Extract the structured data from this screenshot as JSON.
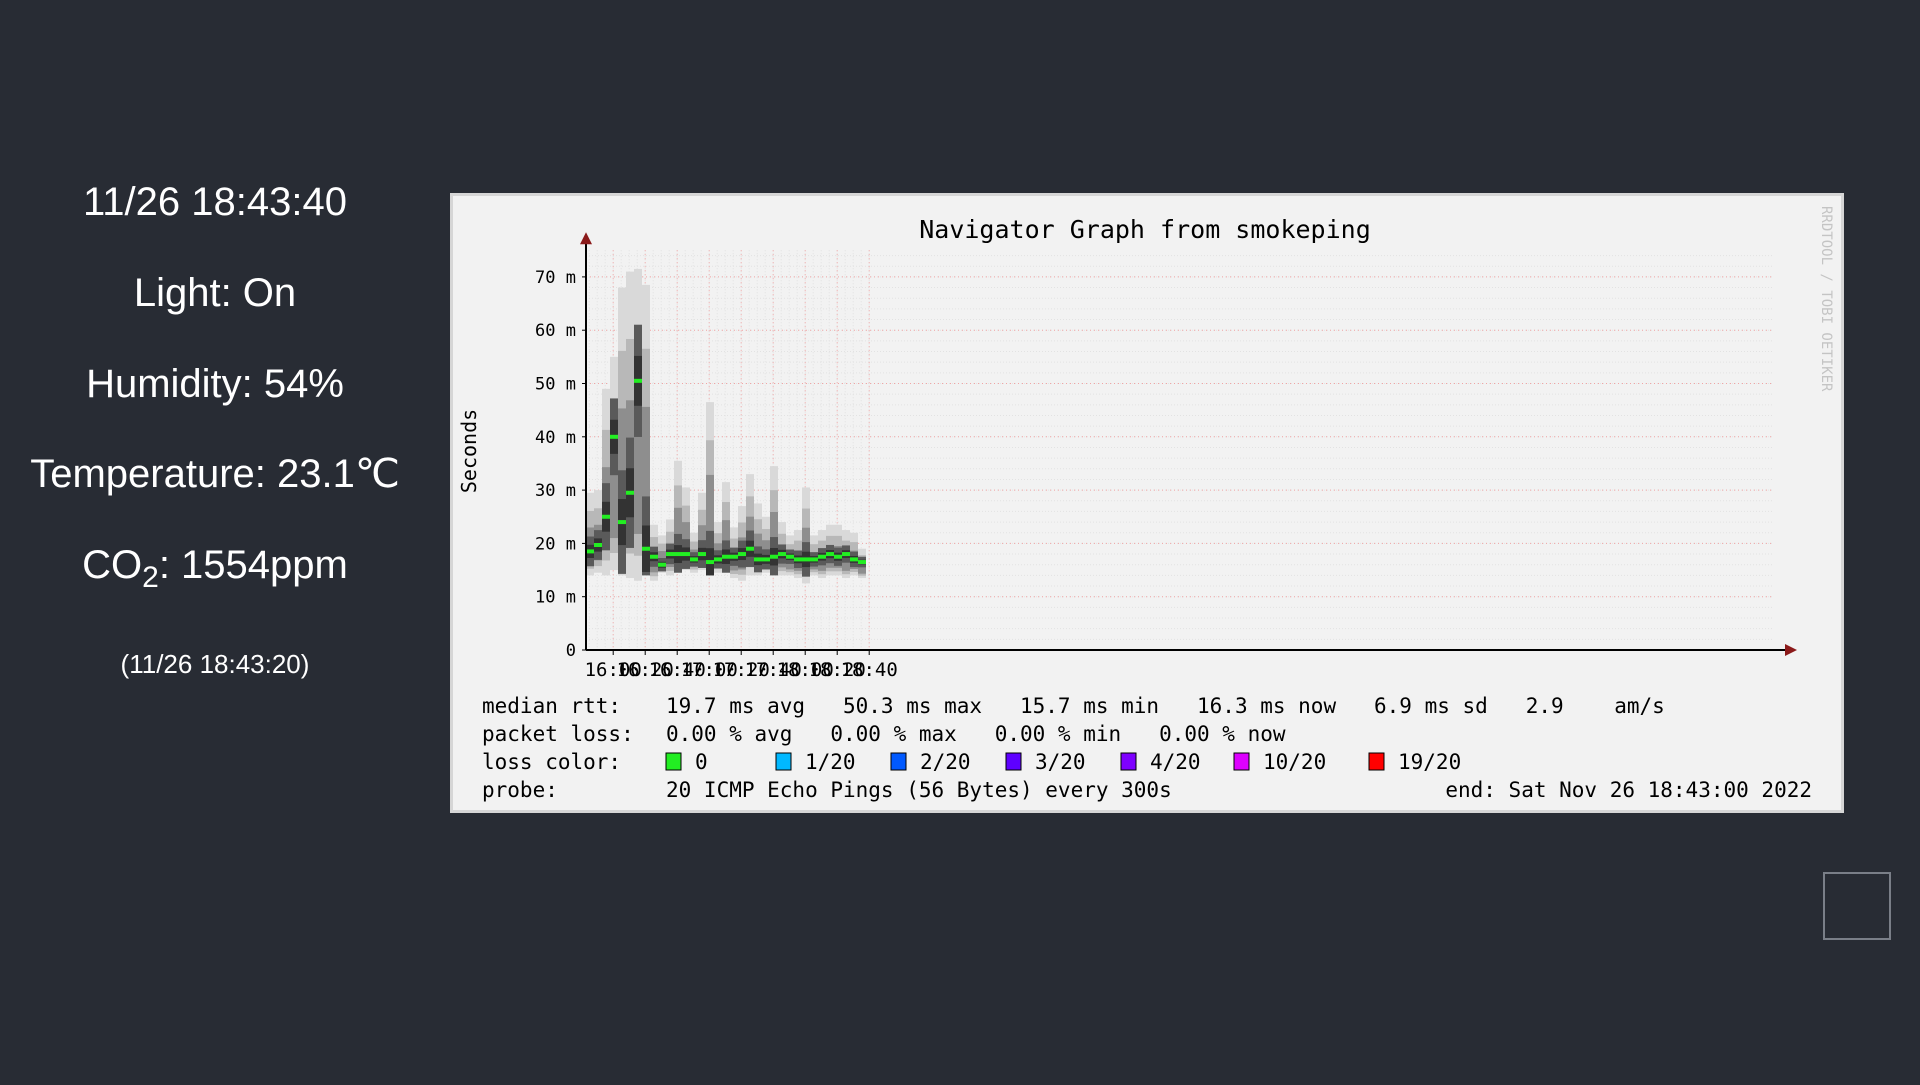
{
  "sensors": {
    "datetime": "11/26 18:43:40",
    "light": "Light: On",
    "humidity": "Humidity: 54%",
    "temperature": "Temperature: 23.1℃",
    "co2_prefix": "CO",
    "co2_sub": "2",
    "co2_value": ": 1554ppm",
    "updated": "(11/26 18:43:20)"
  },
  "chart_data": {
    "type": "bar",
    "title": "Navigator Graph from smokeping",
    "ylabel": "Seconds",
    "side_watermark": "RRDTOOL / TOBI OETIKER",
    "ylim": [
      0,
      75
    ],
    "y_ticks": [
      {
        "value": 0,
        "label": "0"
      },
      {
        "value": 10,
        "label": "10 m"
      },
      {
        "value": 20,
        "label": "20 m"
      },
      {
        "value": 30,
        "label": "30 m"
      },
      {
        "value": 40,
        "label": "40 m"
      },
      {
        "value": 50,
        "label": "50 m"
      },
      {
        "value": 60,
        "label": "60 m"
      },
      {
        "value": 70,
        "label": "70 m"
      }
    ],
    "x_ticks": [
      "16:00",
      "16:20",
      "16:40",
      "17:00",
      "17:20",
      "17:40",
      "18:00",
      "18:20",
      "18:40"
    ],
    "x_start": "15:43",
    "x_end": "18:43",
    "interval_minutes": 5,
    "median_ms": [
      18.5,
      19.7,
      25,
      40,
      24,
      29.5,
      50.5,
      19,
      17.5,
      16,
      18,
      18,
      18,
      17,
      18,
      16.5,
      17,
      17.5,
      17.5,
      18,
      19,
      17,
      17,
      17.5,
      18,
      17.5,
      17,
      17,
      17,
      17.5,
      18,
      17.5,
      18,
      17,
      16.5
    ],
    "max_ms": [
      29.5,
      30,
      49,
      55,
      68,
      71,
      71.5,
      68.5,
      23.5,
      21.5,
      24.5,
      35.5,
      30.5,
      22,
      29.5,
      46.5,
      24,
      31.5,
      23,
      27,
      33,
      27.5,
      25,
      34.5,
      24,
      21.5,
      22.5,
      30.5,
      21.5,
      22.5,
      23.5,
      23.5,
      22.5,
      22,
      19
    ],
    "min_ms": [
      14,
      14.5,
      14,
      15,
      14,
      13.5,
      13,
      14,
      13,
      14.5,
      14,
      14.5,
      15,
      14.5,
      15,
      14,
      14.5,
      14.5,
      13.5,
      13,
      14,
      14,
      14.5,
      14,
      14,
      14,
      13.5,
      12.5,
      14,
      13.5,
      14,
      14,
      13.5,
      14,
      13.5
    ],
    "stats": {
      "median_label": "median rtt:",
      "median_text": "19.7 ms avg   50.3 ms max   15.7 ms min   16.3 ms now   6.9 ms sd   2.9    am/s",
      "loss_label": "packet loss:",
      "loss_text": "0.00 % avg   0.00 % max   0.00 % min   0.00 % now",
      "loss_color_label": "loss color:",
      "probe_label": "probe:",
      "probe_text": "20 ICMP Echo Pings (56 Bytes) every 300s",
      "end_text": "end: Sat Nov 26 18:43:00 2022"
    },
    "loss_legend": [
      {
        "label": "0",
        "color": "#22ee22"
      },
      {
        "label": "1/20",
        "color": "#00b8ff"
      },
      {
        "label": "2/20",
        "color": "#0059ff"
      },
      {
        "label": "3/20",
        "color": "#5e00ff"
      },
      {
        "label": "4/20",
        "color": "#7e00ff"
      },
      {
        "label": "10/20",
        "color": "#dd00ff"
      },
      {
        "label": "19/20",
        "color": "#ff0000"
      }
    ]
  }
}
